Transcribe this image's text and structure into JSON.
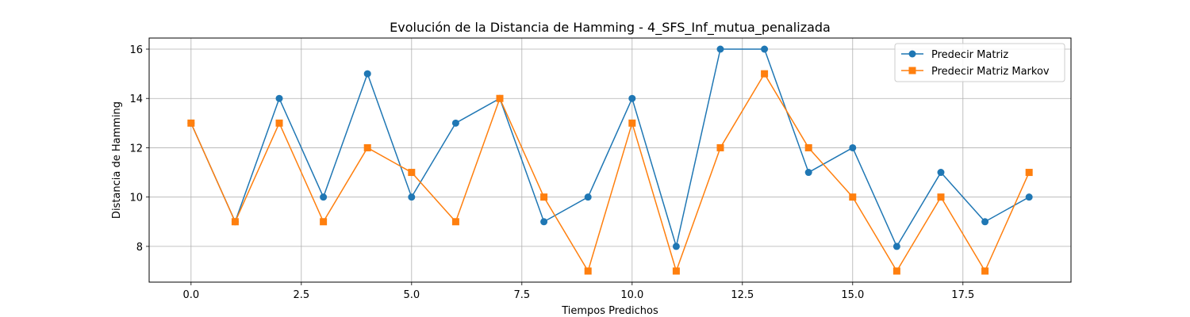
{
  "chart_data": {
    "type": "line",
    "title": "Evolución de la Distancia de Hamming - 4_SFS_Inf_mutua_penalizada",
    "xlabel": "Tiempos Predichos",
    "ylabel": "Distancia de Hamming",
    "xlim": [
      -0.95,
      19.95
    ],
    "ylim": [
      6.55,
      16.45
    ],
    "xticks": [
      0.0,
      2.5,
      5.0,
      7.5,
      10.0,
      12.5,
      15.0,
      17.5
    ],
    "xtick_labels": [
      "0.0",
      "2.5",
      "5.0",
      "7.5",
      "10.0",
      "12.5",
      "15.0",
      "17.5"
    ],
    "yticks": [
      8,
      10,
      12,
      14,
      16
    ],
    "ytick_labels": [
      "8",
      "10",
      "12",
      "14",
      "16"
    ],
    "grid": true,
    "legend_position": "top-right",
    "x": [
      0,
      1,
      2,
      3,
      4,
      5,
      6,
      7,
      8,
      9,
      10,
      11,
      12,
      13,
      14,
      15,
      16,
      17,
      18,
      19
    ],
    "series": [
      {
        "name": "Predecir Matriz",
        "color": "#1f77b4",
        "marker": "circle",
        "values": [
          13,
          9,
          14,
          10,
          15,
          10,
          13,
          14,
          9,
          10,
          14,
          8,
          16,
          16,
          11,
          12,
          8,
          11,
          9,
          10
        ]
      },
      {
        "name": "Predecir Matriz Markov",
        "color": "#ff7f0e",
        "marker": "square",
        "values": [
          13,
          9,
          13,
          9,
          12,
          11,
          9,
          14,
          10,
          7,
          13,
          7,
          12,
          15,
          12,
          10,
          7,
          10,
          7,
          11
        ]
      }
    ]
  }
}
